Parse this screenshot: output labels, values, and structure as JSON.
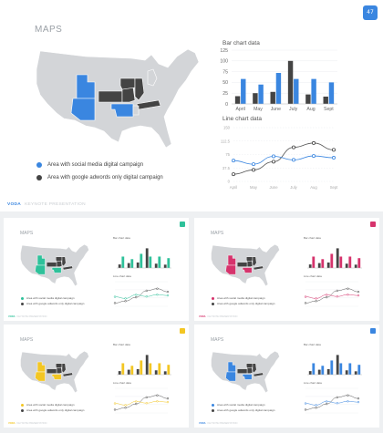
{
  "main": {
    "title": "MAPS",
    "page_number": "47",
    "bar_chart_title": "Bar chart data",
    "line_chart_title": "Line chart data",
    "legend": [
      {
        "label": "Area with social media digital campaign",
        "color": "#3a86e0"
      },
      {
        "label": "Area with google adwords only digital campaign",
        "color": "#444444"
      }
    ],
    "footer_brand": "VODA",
    "footer_tag": "KEYNOTE PRESENTATION"
  },
  "colors": {
    "map_gray": "#d3d5d8",
    "dark": "#444444",
    "light_gray_bar": "#b9bcc0"
  },
  "thumbnails": [
    {
      "title": "MAPS",
      "accent": "#2ec19a",
      "light": "#a7e6d4"
    },
    {
      "title": "MAPS",
      "accent": "#d6336c",
      "light": "#f2a5c0"
    },
    {
      "title": "MAPS",
      "accent": "#f3c623",
      "light": "#f8e49a"
    },
    {
      "title": "MAPS",
      "accent": "#3a86e0",
      "light": "#a9cdf4"
    }
  ],
  "thumb_text": {
    "bar_chart_title": "Bar chart data",
    "line_chart_title": "Line chart data",
    "legend_1": "Area with social media digital campaign",
    "legend_2": "Area with google adwords only digital campaign",
    "footer_brand": "VODA",
    "footer_tag": "KEYNOTE PRESENTATION"
  },
  "chart_data": [
    {
      "type": "bar",
      "title": "Bar chart data",
      "categories": [
        "April",
        "May",
        "June",
        "July",
        "Aug",
        "Sept"
      ],
      "series": [
        {
          "values": [
            18,
            25,
            28,
            100,
            22,
            17
          ],
          "color": "#444444"
        },
        {
          "values": [
            58,
            45,
            72,
            58,
            58,
            50
          ],
          "color": "#3a86e0"
        }
      ],
      "yticks": [
        0,
        25,
        50,
        75,
        100,
        125
      ],
      "ylim": [
        0,
        125
      ]
    },
    {
      "type": "line",
      "title": "Line chart data",
      "categories": [
        "April",
        "May",
        "June",
        "July",
        "Aug",
        "Sept"
      ],
      "series": [
        {
          "values": [
            20,
            32,
            55,
            95,
            107,
            88
          ],
          "color": "#444444"
        },
        {
          "values": [
            58,
            48,
            70,
            60,
            71,
            66
          ],
          "color": "#3a86e0"
        }
      ],
      "yticks": [
        "0",
        "37.5",
        "75",
        "112.5",
        "150"
      ],
      "ylim": [
        0,
        150
      ]
    }
  ]
}
